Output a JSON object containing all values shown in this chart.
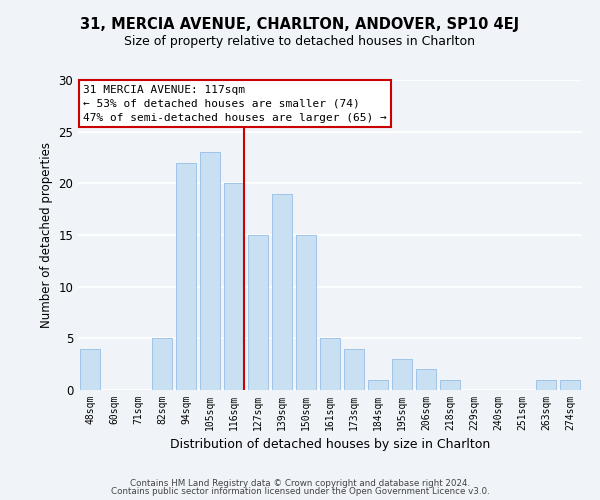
{
  "title": "31, MERCIA AVENUE, CHARLTON, ANDOVER, SP10 4EJ",
  "subtitle": "Size of property relative to detached houses in Charlton",
  "xlabel": "Distribution of detached houses by size in Charlton",
  "ylabel": "Number of detached properties",
  "bar_labels": [
    "48sqm",
    "60sqm",
    "71sqm",
    "82sqm",
    "94sqm",
    "105sqm",
    "116sqm",
    "127sqm",
    "139sqm",
    "150sqm",
    "161sqm",
    "173sqm",
    "184sqm",
    "195sqm",
    "206sqm",
    "218sqm",
    "229sqm",
    "240sqm",
    "251sqm",
    "263sqm",
    "274sqm"
  ],
  "bar_values": [
    4,
    0,
    0,
    5,
    22,
    23,
    20,
    15,
    19,
    15,
    5,
    4,
    1,
    3,
    2,
    1,
    0,
    0,
    0,
    1,
    1
  ],
  "bar_color": "#c9dff2",
  "bar_edge_color": "#a0c4e8",
  "vline_x_index": 6,
  "vline_color": "#cc0000",
  "annotation_title": "31 MERCIA AVENUE: 117sqm",
  "annotation_line1": "← 53% of detached houses are smaller (74)",
  "annotation_line2": "47% of semi-detached houses are larger (65) →",
  "annotation_box_color": "#ffffff",
  "annotation_box_edge": "#cc0000",
  "ylim": [
    0,
    30
  ],
  "yticks": [
    0,
    5,
    10,
    15,
    20,
    25,
    30
  ],
  "footer1": "Contains HM Land Registry data © Crown copyright and database right 2024.",
  "footer2": "Contains public sector information licensed under the Open Government Licence v3.0.",
  "bg_color": "#f0f4f8"
}
